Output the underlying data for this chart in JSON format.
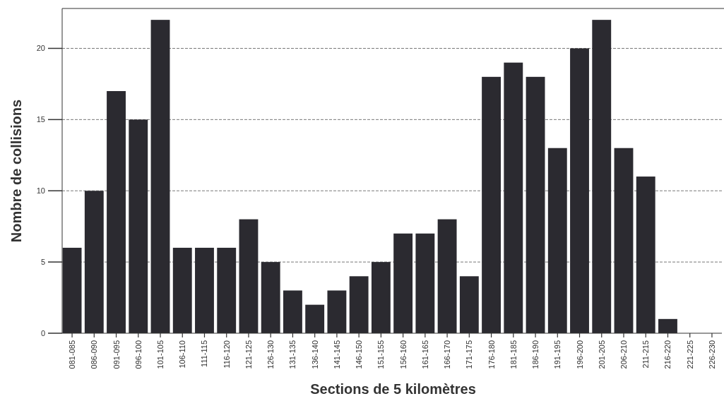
{
  "chart_data": {
    "type": "bar",
    "xlabel": "Sections de 5 kilomètres",
    "ylabel": "Nombre de collisions",
    "categories": [
      "081-085",
      "086-090",
      "091-095",
      "096-100",
      "101-105",
      "106-110",
      "111-115",
      "116-120",
      "121-125",
      "126-130",
      "131-135",
      "136-140",
      "141-145",
      "146-150",
      "151-155",
      "156-160",
      "161-165",
      "166-170",
      "171-175",
      "176-180",
      "181-185",
      "186-190",
      "191-195",
      "196-200",
      "201-205",
      "206-210",
      "211-215",
      "216-220",
      "221-225",
      "226-230"
    ],
    "values": [
      6,
      10,
      17,
      15,
      22,
      6,
      6,
      6,
      8,
      5,
      3,
      2,
      3,
      4,
      5,
      7,
      7,
      8,
      4,
      18,
      19,
      18,
      13,
      20,
      22,
      13,
      11,
      1,
      0,
      0
    ],
    "color": "#2b2a30",
    "ylim": [
      0,
      22.8
    ],
    "yticks": [
      0,
      5,
      10,
      15,
      20
    ],
    "grid": "y"
  }
}
